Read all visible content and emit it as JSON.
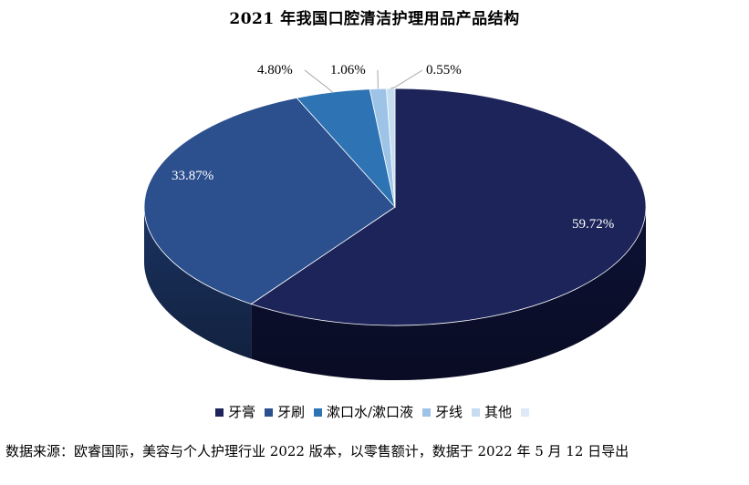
{
  "chart_data": {
    "type": "pie",
    "title": "2021 年我国口腔清洁护理用品产品结构",
    "slices": [
      {
        "name": "牙膏",
        "value": 59.72,
        "label": "59.72%",
        "color": "#1c2459",
        "side": "#0d1236"
      },
      {
        "name": "牙刷",
        "value": 33.87,
        "label": "33.87%",
        "color": "#2c4f8e",
        "side": "#1b3361"
      },
      {
        "name": "漱口水/漱口液",
        "value": 4.8,
        "label": "4.80%",
        "color": "#2e74b5",
        "side": "#1d4f80"
      },
      {
        "name": "牙线",
        "value": 1.06,
        "label": "1.06%",
        "color": "#9dc3e6",
        "side": "#6f96bb"
      },
      {
        "name": "其他",
        "value": 0.55,
        "label": "0.55%",
        "color": "#c5dcf1",
        "side": "#97b1c9"
      }
    ],
    "legend_extra": "",
    "legend_position": "bottom"
  },
  "source_note": "数据来源：欧睿国际，美容与个人护理行业 2022 版本，以零售额计，数据于 2022 年 5 月 12 日导出"
}
